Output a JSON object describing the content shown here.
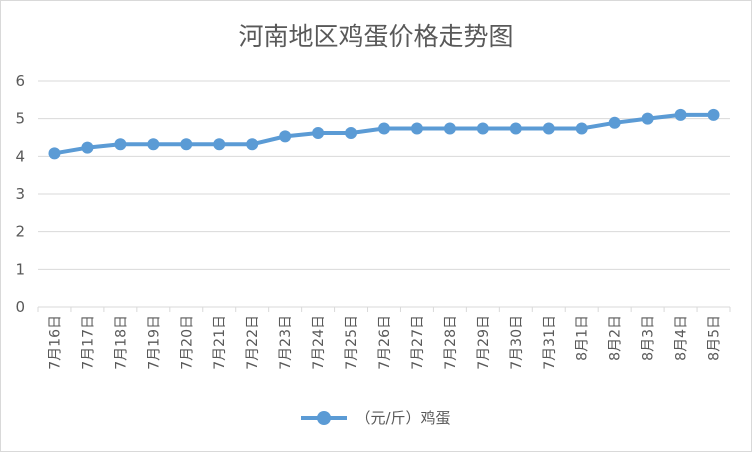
{
  "chart_data": {
    "type": "line",
    "title": "河南地区鸡蛋价格走势图",
    "categories": [
      "7月16日",
      "7月17日",
      "7月18日",
      "7月19日",
      "7月20日",
      "7月21日",
      "7月22日",
      "7月23日",
      "7月24日",
      "7月25日",
      "7月26日",
      "7月27日",
      "7月28日",
      "7月29日",
      "7月30日",
      "7月31日",
      "8月1日",
      "8月2日",
      "8月3日",
      "8月4日",
      "8月5日"
    ],
    "series": [
      {
        "name": "（元/斤）鸡蛋",
        "color": "#5b9bd5",
        "values": [
          4.08,
          4.23,
          4.32,
          4.32,
          4.32,
          4.32,
          4.32,
          4.53,
          4.62,
          4.62,
          4.74,
          4.74,
          4.74,
          4.74,
          4.74,
          4.74,
          4.74,
          4.89,
          5.0,
          5.1,
          5.1
        ]
      }
    ],
    "ylim": [
      0,
      6
    ],
    "yticks": [
      0,
      1,
      2,
      3,
      4,
      5,
      6
    ],
    "grid": true,
    "legend": "bottom",
    "xlabel": "",
    "ylabel": ""
  }
}
